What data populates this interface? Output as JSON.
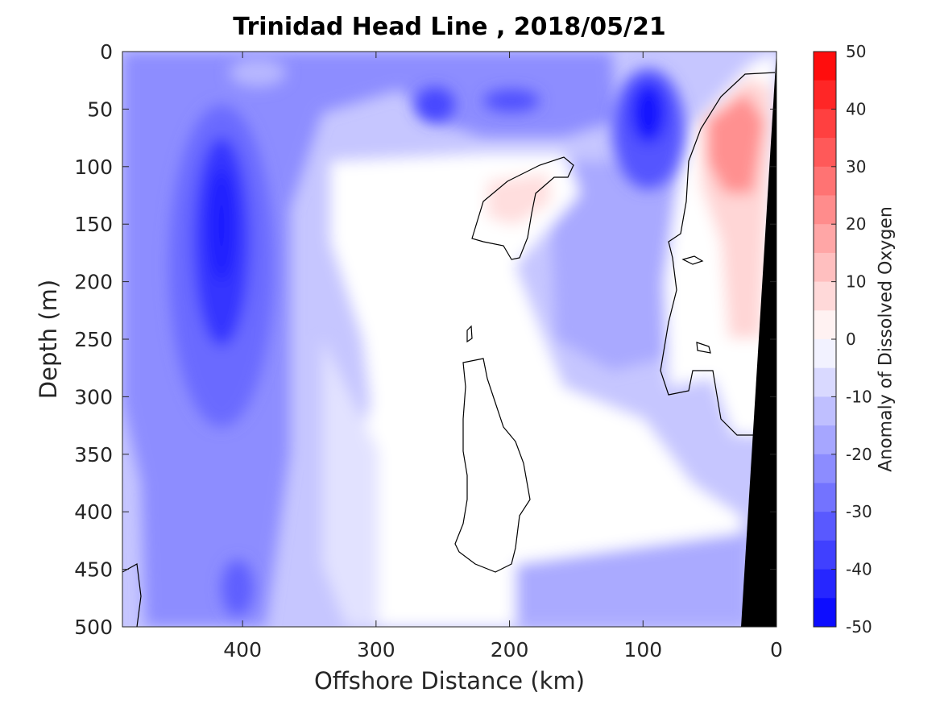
{
  "chart_data": {
    "type": "heatmap",
    "title": "Trinidad Head Line , 2018/05/21",
    "xlabel": "Offshore Distance (km)",
    "ylabel": "Depth (m)",
    "colorbar_label": "Anomaly of Dissolved Oxygen",
    "xlim": [
      490,
      0
    ],
    "ylim": [
      0,
      500
    ],
    "x_reversed": true,
    "y_reversed": true,
    "xticks": [
      400,
      300,
      200,
      100,
      0
    ],
    "yticks": [
      0,
      50,
      100,
      150,
      200,
      250,
      300,
      350,
      400,
      450,
      500
    ],
    "colorbar": {
      "min": -50,
      "max": 50,
      "step": 5,
      "ticks": [
        50,
        40,
        30,
        20,
        10,
        0,
        -10,
        -20,
        -30,
        -40,
        -50
      ],
      "low_color": "#0000ff",
      "mid_color": "#ffffff",
      "high_color": "#ff0000"
    },
    "zero_contour": true,
    "bathymetry_color": "#000000",
    "anomaly_features": [
      {
        "x": 420,
        "depth": 230,
        "value": -40
      },
      {
        "x": 90,
        "depth": 70,
        "value": -45
      },
      {
        "x": 255,
        "depth": 45,
        "value": -30
      },
      {
        "x": 190,
        "depth": 45,
        "value": -25
      },
      {
        "x": 30,
        "depth": 100,
        "value": 25
      },
      {
        "x": 205,
        "depth": 135,
        "value": 8
      },
      {
        "x": 205,
        "depth": 370,
        "value": 0
      },
      {
        "x": 80,
        "depth": 470,
        "value": -15
      }
    ]
  }
}
